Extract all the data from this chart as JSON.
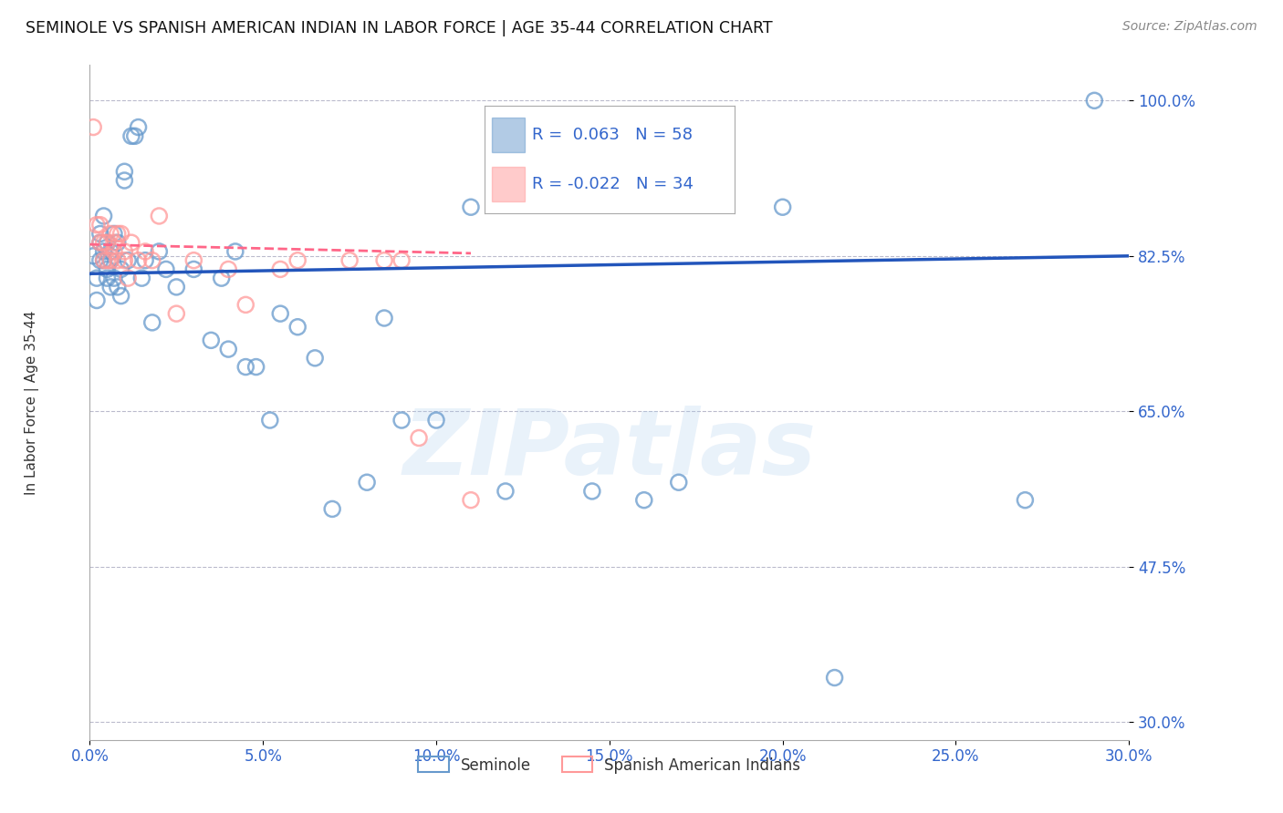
{
  "title": "SEMINOLE VS SPANISH AMERICAN INDIAN IN LABOR FORCE | AGE 35-44 CORRELATION CHART",
  "source": "Source: ZipAtlas.com",
  "ylabel": "In Labor Force | Age 35-44",
  "xlim": [
    0.0,
    0.3
  ],
  "ylim": [
    0.28,
    1.04
  ],
  "xticks": [
    0.0,
    0.05,
    0.1,
    0.15,
    0.2,
    0.25,
    0.3
  ],
  "xticklabels": [
    "0.0%",
    "5.0%",
    "10.0%",
    "15.0%",
    "20.0%",
    "25.0%",
    "30.0%"
  ],
  "yticks": [
    0.3,
    0.475,
    0.65,
    0.825,
    1.0
  ],
  "yticklabels": [
    "30.0%",
    "47.5%",
    "65.0%",
    "82.5%",
    "100.0%"
  ],
  "blue_color": "#6699CC",
  "pink_color": "#FF9999",
  "trend_blue_color": "#2255BB",
  "trend_pink_color": "#FF6688",
  "legend_R_blue": "R =  0.063",
  "legend_N_blue": "N = 58",
  "legend_R_pink": "R = -0.022",
  "legend_N_pink": "N = 34",
  "watermark": "ZIPatlas",
  "blue_scatter_x": [
    0.001,
    0.002,
    0.002,
    0.003,
    0.003,
    0.003,
    0.004,
    0.004,
    0.004,
    0.005,
    0.005,
    0.005,
    0.006,
    0.006,
    0.006,
    0.007,
    0.007,
    0.008,
    0.008,
    0.009,
    0.009,
    0.01,
    0.01,
    0.011,
    0.012,
    0.013,
    0.014,
    0.015,
    0.016,
    0.018,
    0.02,
    0.022,
    0.025,
    0.03,
    0.035,
    0.038,
    0.04,
    0.042,
    0.045,
    0.048,
    0.052,
    0.055,
    0.06,
    0.065,
    0.07,
    0.08,
    0.085,
    0.09,
    0.1,
    0.11,
    0.12,
    0.145,
    0.16,
    0.17,
    0.2,
    0.215,
    0.27,
    0.29
  ],
  "blue_scatter_y": [
    0.825,
    0.8,
    0.775,
    0.84,
    0.85,
    0.82,
    0.87,
    0.82,
    0.83,
    0.81,
    0.8,
    0.84,
    0.79,
    0.82,
    0.83,
    0.85,
    0.8,
    0.79,
    0.84,
    0.78,
    0.81,
    0.92,
    0.91,
    0.82,
    0.96,
    0.96,
    0.97,
    0.8,
    0.82,
    0.75,
    0.83,
    0.81,
    0.79,
    0.81,
    0.73,
    0.8,
    0.72,
    0.83,
    0.7,
    0.7,
    0.64,
    0.76,
    0.745,
    0.71,
    0.54,
    0.57,
    0.755,
    0.64,
    0.64,
    0.88,
    0.56,
    0.56,
    0.55,
    0.57,
    0.88,
    0.35,
    0.55,
    1.0
  ],
  "pink_scatter_x": [
    0.001,
    0.002,
    0.003,
    0.003,
    0.004,
    0.004,
    0.005,
    0.005,
    0.006,
    0.006,
    0.007,
    0.007,
    0.008,
    0.008,
    0.009,
    0.01,
    0.01,
    0.011,
    0.012,
    0.014,
    0.016,
    0.018,
    0.02,
    0.025,
    0.03,
    0.04,
    0.045,
    0.055,
    0.06,
    0.075,
    0.085,
    0.09,
    0.095,
    0.11
  ],
  "pink_scatter_y": [
    0.97,
    0.86,
    0.86,
    0.84,
    0.84,
    0.82,
    0.84,
    0.82,
    0.85,
    0.82,
    0.84,
    0.83,
    0.85,
    0.82,
    0.85,
    0.83,
    0.82,
    0.8,
    0.84,
    0.82,
    0.83,
    0.82,
    0.87,
    0.76,
    0.82,
    0.81,
    0.77,
    0.81,
    0.82,
    0.82,
    0.82,
    0.82,
    0.62,
    0.55
  ],
  "blue_trend_x": [
    0.0,
    0.3
  ],
  "blue_trend_y": [
    0.805,
    0.825
  ],
  "pink_trend_x": [
    0.0,
    0.11
  ],
  "pink_trend_y": [
    0.838,
    0.828
  ]
}
